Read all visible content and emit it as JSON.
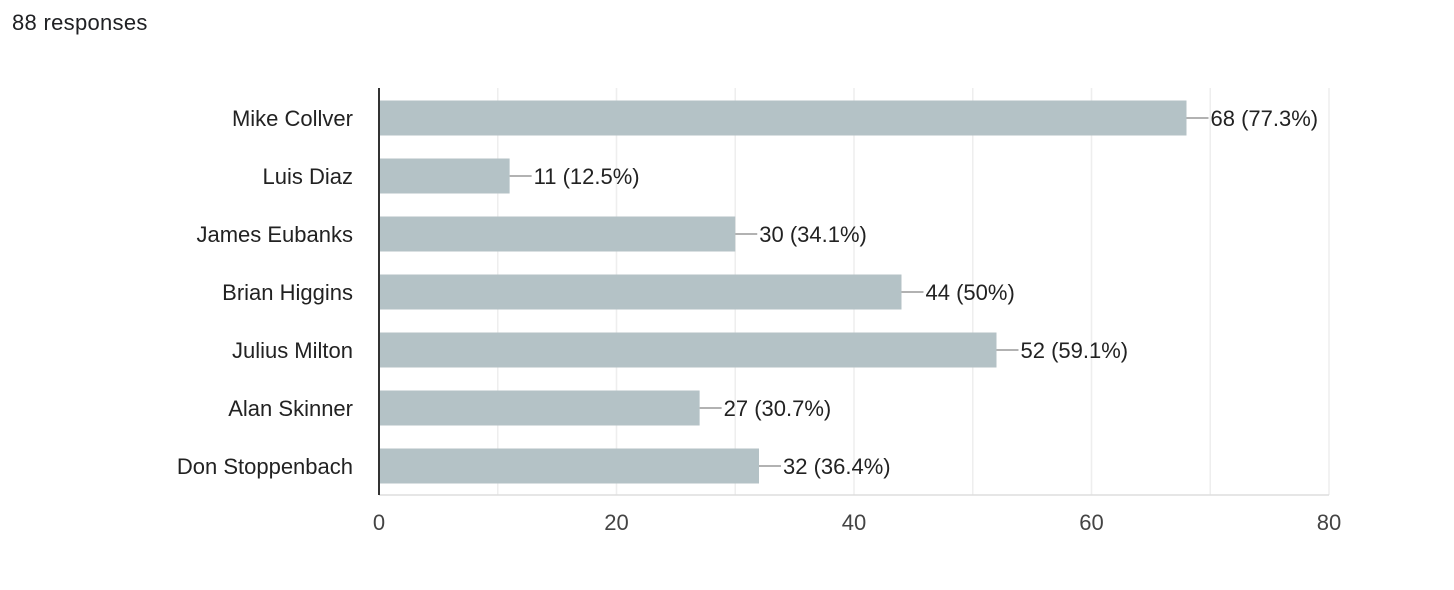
{
  "header": {
    "responses_label": "88 responses"
  },
  "chart_data": {
    "type": "bar",
    "orientation": "horizontal",
    "categories": [
      "Mike Collver",
      "Luis Diaz",
      "James Eubanks",
      "Brian Higgins",
      "Julius Milton",
      "Alan Skinner",
      "Don Stoppenbach"
    ],
    "values": [
      68,
      11,
      30,
      44,
      52,
      27,
      32
    ],
    "data_labels": [
      "68 (77.3%)",
      "11 (12.5%)",
      "30 (34.1%)",
      "44 (50%)",
      "52 (59.1%)",
      "27 (30.7%)",
      "32 (36.4%)"
    ],
    "xlim": [
      0,
      80
    ],
    "x_ticks": [
      0,
      20,
      40,
      60,
      80
    ],
    "grid": true,
    "bar_color": "#b4c2c6",
    "grid_color": "#eeeeee",
    "axis_color": "#333333",
    "leader_color": "#999999"
  }
}
